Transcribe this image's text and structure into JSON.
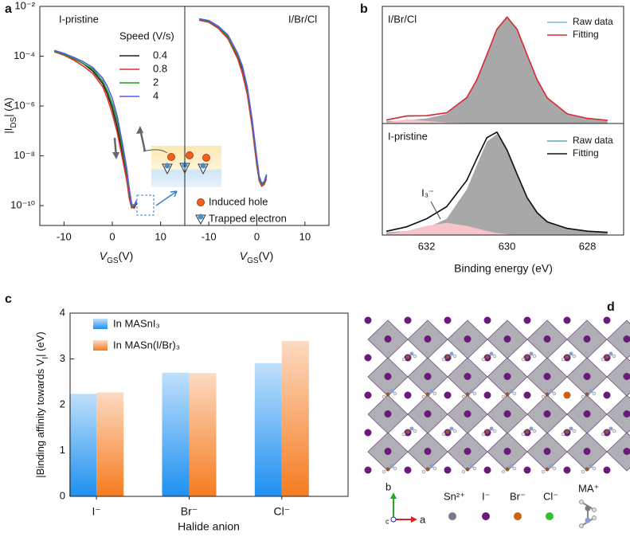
{
  "panel_labels": [
    "a",
    "b",
    "c",
    "d"
  ],
  "inset": {
    "induced": "Induced hole",
    "trapped": "Trapped electron"
  },
  "structure": {
    "legend": [
      "Sn²⁺",
      "I⁻",
      "Br⁻",
      "Cl⁻",
      "MA⁺"
    ],
    "axes": [
      "b",
      "a",
      "c"
    ]
  },
  "chart_data": [
    {
      "type": "line",
      "title": "I-pristine",
      "log_y": true,
      "xlim": [
        -15,
        15
      ],
      "xticks": [
        -10,
        0,
        10
      ],
      "ylim": [
        1.6e-11,
        0.01
      ],
      "yticks": [
        {
          "value": 1e-10,
          "label": "10⁻¹⁰"
        },
        {
          "value": 1e-08,
          "label": "10⁻⁸"
        },
        {
          "value": 1e-06,
          "label": "10⁻⁶"
        },
        {
          "value": 0.0001,
          "label": "10⁻⁴"
        },
        {
          "value": 0.01,
          "label": "10⁻²"
        }
      ],
      "ylabel": [
        "|I",
        "DS",
        "| (A)"
      ],
      "xlabel": [
        "V",
        "GS",
        "(V)"
      ],
      "legend_title": "Speed (V/s)",
      "x": [
        -12,
        -10,
        -8,
        -6,
        -4,
        -2,
        -1,
        0,
        1,
        2,
        3,
        3.5,
        4,
        4.5,
        5
      ],
      "series": [
        {
          "name": "0.4",
          "color": "#222222",
          "values": [
            0.00016,
            0.00012,
            8e-05,
            5e-05,
            2.5e-05,
            8e-06,
            3e-06,
            8e-07,
            1.5e-07,
            1.5e-08,
            1.5e-09,
            3e-10,
            9e-11,
            8e-11,
            1.2e-10
          ]
        },
        {
          "name": "0.8",
          "color": "#e03030",
          "values": [
            0.00015,
            0.00011,
            7e-05,
            4e-05,
            2e-05,
            6e-06,
            2e-06,
            5e-07,
            9e-08,
            1e-08,
            1e-09,
            2e-10,
            8e-11,
            9e-11,
            1.3e-10
          ]
        },
        {
          "name": "2",
          "color": "#1a9a1a",
          "values": [
            0.00016,
            0.00012,
            8e-05,
            5e-05,
            3e-05,
            1e-05,
            4e-06,
            1.2e-06,
            2.5e-07,
            2.5e-08,
            2e-09,
            4e-10,
            1e-10,
            9e-11,
            1.5e-10
          ]
        },
        {
          "name": "4",
          "color": "#5a5ae6",
          "values": [
            0.00017,
            0.00013,
            9e-05,
            6e-05,
            3.5e-05,
            1.3e-05,
            6e-06,
            2e-06,
            4e-07,
            4e-08,
            3e-09,
            5e-10,
            1.2e-10,
            1e-10,
            1.6e-10
          ]
        }
      ]
    },
    {
      "type": "line",
      "title": "I/Br/Cl",
      "log_y": true,
      "xlim": [
        -15,
        15
      ],
      "xticks": [
        -10,
        0,
        10
      ],
      "ylim": [
        1.6e-11,
        0.01
      ],
      "xlabel": [
        "V",
        "GS",
        "(V)"
      ],
      "x": [
        -12,
        -10,
        -8,
        -6,
        -4,
        -3,
        -2,
        -1,
        0,
        0.5,
        1,
        1.5,
        2
      ],
      "series": [
        {
          "color": "#222222",
          "values": [
            0.003,
            0.0025,
            0.0015,
            0.0006,
            0.0001,
            3e-05,
            4e-06,
            2e-07,
            5e-09,
            1e-09,
            7e-10,
            8e-10,
            1.5e-09
          ]
        },
        {
          "color": "#e03030",
          "values": [
            0.0028,
            0.0023,
            0.0013,
            0.0005,
            8e-05,
            2e-05,
            3e-06,
            1.5e-07,
            4e-09,
            1e-09,
            6e-10,
            7e-10,
            1.2e-09
          ]
        },
        {
          "color": "#1a9a1a",
          "values": [
            0.003,
            0.0025,
            0.0015,
            0.0006,
            0.00011,
            3.5e-05,
            5e-06,
            2.5e-07,
            6e-09,
            1.2e-09,
            7e-10,
            8e-10,
            1.6e-09
          ]
        },
        {
          "color": "#5a5ae6",
          "values": [
            0.0032,
            0.0027,
            0.0016,
            0.0007,
            0.00013,
            4e-05,
            6e-06,
            3e-07,
            8e-09,
            1.5e-09,
            8e-10,
            9e-10,
            1.8e-09
          ]
        }
      ]
    },
    {
      "type": "line",
      "title": "I/Br/Cl",
      "xlim": [
        633.1,
        627.1
      ],
      "ylim": [
        0,
        1.1
      ],
      "x": [
        633,
        632.5,
        632,
        631.5,
        631,
        630.75,
        630.5,
        630.25,
        630,
        629.75,
        629.5,
        629.25,
        629,
        628.5,
        628,
        627.5
      ],
      "series": [
        {
          "kind": "area",
          "color": "#a8a8a8",
          "values": [
            0.022,
            0.03,
            0.048,
            0.09,
            0.24,
            0.41,
            0.645,
            0.885,
            1,
            0.885,
            0.645,
            0.41,
            0.24,
            0.09,
            0.048,
            0.03
          ]
        },
        {
          "kind": "area",
          "color": "#f6c4cb",
          "values": [
            0.01,
            0.04,
            0.025,
            0.01,
            0.003,
            0,
            0,
            0,
            0,
            0,
            0,
            0,
            0,
            0,
            0,
            0
          ]
        },
        {
          "name": "Raw data",
          "color": "#7fb2e5",
          "values": [
            0.032,
            0.07,
            0.073,
            0.1,
            0.243,
            0.41,
            0.645,
            0.885,
            1,
            0.885,
            0.645,
            0.41,
            0.24,
            0.09,
            0.048,
            0.03
          ]
        },
        {
          "name": "Fitting",
          "color": "#e0282e",
          "values": [
            0.032,
            0.07,
            0.073,
            0.1,
            0.243,
            0.41,
            0.645,
            0.885,
            1,
            0.885,
            0.645,
            0.41,
            0.24,
            0.09,
            0.048,
            0.03
          ]
        }
      ]
    },
    {
      "type": "line",
      "title": "I-pristine",
      "xlim": [
        633.1,
        627.1
      ],
      "ylim": [
        0,
        1.1
      ],
      "xticks": [
        632,
        630,
        628
      ],
      "xlabel": "Binding energy (eV)",
      "annotation": "I₃⁻",
      "x": [
        633,
        632.5,
        632,
        631.5,
        631,
        630.75,
        630.5,
        630.25,
        630,
        629.75,
        629.5,
        629.25,
        629,
        628.5,
        628,
        627.5
      ],
      "series": [
        {
          "kind": "area",
          "color": "#a8a8a8",
          "values": [
            0.027,
            0.04,
            0.07,
            0.16,
            0.45,
            0.69,
            0.92,
            0.995,
            0.83,
            0.6,
            0.37,
            0.22,
            0.13,
            0.065,
            0.038,
            0.026
          ]
        },
        {
          "kind": "area",
          "color": "#f6c4cb",
          "values": [
            0.01,
            0.04,
            0.09,
            0.12,
            0.09,
            0.065,
            0.04,
            0.02,
            0.008,
            0,
            0,
            0,
            0,
            0,
            0,
            0
          ]
        },
        {
          "name": "Raw data",
          "color": "#5fa8b8",
          "values": [
            0.037,
            0.08,
            0.16,
            0.28,
            0.54,
            0.755,
            0.96,
            1.015,
            0.838,
            0.6,
            0.37,
            0.22,
            0.13,
            0.065,
            0.038,
            0.026
          ]
        },
        {
          "name": "Fitting",
          "color": "#111111",
          "values": [
            0.037,
            0.08,
            0.16,
            0.28,
            0.54,
            0.755,
            0.96,
            1.015,
            0.838,
            0.6,
            0.37,
            0.22,
            0.13,
            0.065,
            0.038,
            0.026
          ]
        }
      ]
    },
    {
      "type": "bar",
      "categories": [
        "I⁻",
        "Br⁻",
        "Cl⁻"
      ],
      "ylim": [
        0,
        4
      ],
      "yticks": [
        0,
        1,
        2,
        3,
        4
      ],
      "ylabel": [
        "|Binding affinity towards V",
        "I",
        "| (eV)"
      ],
      "xlabel": "Halide anion",
      "series": [
        {
          "name": "In MASnI₃",
          "color": "#1e90f0",
          "values": [
            2.24,
            2.7,
            2.91
          ]
        },
        {
          "name": "In MASn(I/Br)₃",
          "color": "#f57c20",
          "values": [
            2.27,
            2.69,
            3.39
          ]
        }
      ]
    }
  ]
}
